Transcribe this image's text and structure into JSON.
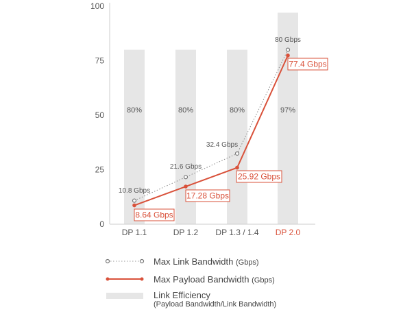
{
  "chart_data": {
    "type": "bar+line",
    "title": "",
    "xlabel": "",
    "ylabel": "",
    "ylim": [
      0,
      100
    ],
    "yticks": [
      "0",
      "25",
      "50",
      "75",
      "100"
    ],
    "categories": [
      "DP 1.1",
      "DP 1.2",
      "DP 1.3 / 1.4",
      "DP 2.0"
    ],
    "bars": {
      "name": "Link Efficiency",
      "values": [
        80,
        80,
        80,
        97
      ],
      "labels": [
        "80%",
        "80%",
        "80%",
        "97%"
      ],
      "color": "#e6e6e6"
    },
    "series": [
      {
        "name": "Max Link Bandwidth",
        "unit": "(Gbps)",
        "values": [
          10.8,
          21.6,
          32.4,
          80
        ],
        "labels": [
          "10.8 Gbps",
          "21.6 Gbps",
          "32.4 Gbps",
          "80 Gbps"
        ],
        "style": "dotted",
        "color": "#888888"
      },
      {
        "name": "Max Payload Bandwidth",
        "unit": "(Gbps)",
        "values": [
          8.64,
          17.28,
          25.92,
          77.4
        ],
        "labels": [
          "8.64 Gbps",
          "17.28 Gbps",
          "25.92 Gbps",
          "77.4 Gbps"
        ],
        "style": "solid",
        "color": "#d9513a"
      }
    ],
    "highlight_category_color": "#d9513a",
    "legend": {
      "placement": "bottom",
      "link_efficiency_label": "Link Efficiency",
      "link_efficiency_sub": "(Payload Bandwidth/Link Bandwidth)"
    }
  }
}
